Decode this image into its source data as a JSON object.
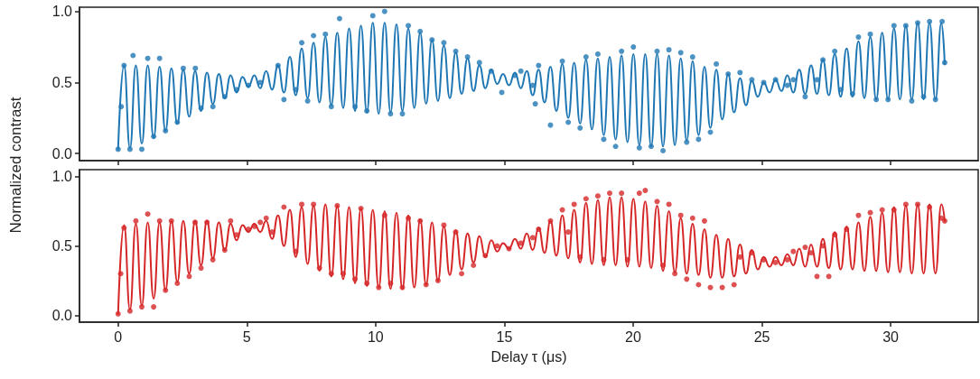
{
  "chart_data": [
    {
      "type": "line",
      "ylabel": "Normalized contrast",
      "xlim": [
        -1.5,
        33.4
      ],
      "ylim": [
        -0.05,
        1.03
      ],
      "xticks": [
        0,
        5,
        10,
        15,
        20,
        25,
        30
      ],
      "yticks": [
        {
          "value": 0,
          "label": "0.0"
        },
        {
          "value": 0.5,
          "label": "0.5"
        },
        {
          "value": 1,
          "label": "1.0"
        }
      ],
      "tick_labels": "y",
      "grid": false,
      "x": [
        0,
        0.23,
        0.46,
        0.69,
        0.92,
        1.15,
        1.38,
        1.61,
        1.84,
        2.07,
        2.3,
        2.53,
        2.76,
        2.99,
        3.22,
        3.45,
        3.68,
        3.91,
        4.14,
        4.37,
        4.6,
        4.83,
        5.06,
        5.29,
        5.52,
        5.75,
        5.98,
        6.21,
        6.44,
        6.67,
        6.9,
        7.13,
        7.36,
        7.59,
        7.82,
        8.05,
        8.28,
        8.51,
        8.74,
        8.97,
        9.2,
        9.43,
        9.66,
        9.89,
        10.12,
        10.35,
        10.58,
        10.81,
        11.04,
        11.27,
        11.5,
        11.73,
        11.96,
        12.19,
        12.42,
        12.65,
        12.88,
        13.11,
        13.34,
        13.57,
        13.8,
        14.03,
        14.26,
        14.49,
        14.72,
        14.95,
        15.18,
        15.41,
        15.64,
        15.87,
        16.1,
        16.33,
        16.56,
        16.79,
        17.02,
        17.25,
        17.48,
        17.71,
        17.94,
        18.17,
        18.4,
        18.63,
        18.86,
        19.09,
        19.32,
        19.55,
        19.78,
        20.01,
        20.24,
        20.47,
        20.7,
        20.93,
        21.16,
        21.39,
        21.62,
        21.85,
        22.08,
        22.31,
        22.54,
        22.77,
        23,
        23.23,
        23.46,
        23.69,
        23.92,
        24.15,
        24.38,
        24.61,
        24.84,
        25.07,
        25.3,
        25.53,
        25.76,
        25.99,
        26.22,
        26.45,
        26.68,
        26.91,
        27.14,
        27.37,
        27.6,
        27.83,
        28.06,
        28.29,
        28.52,
        28.75,
        28.98,
        29.21,
        29.44,
        29.67,
        29.9,
        30.13,
        30.36,
        30.59,
        30.82,
        31.05,
        31.28,
        31.51,
        31.74,
        31.97,
        32.1
      ],
      "series": [
        {
          "color": "#1f77b4",
          "marker": "none",
          "line_style": "solid",
          "values": [
            0.03,
            0.62,
            0.04,
            0.62,
            0.07,
            0.62,
            0.11,
            0.61,
            0.16,
            0.6,
            0.21,
            0.59,
            0.26,
            0.58,
            0.3,
            0.57,
            0.35,
            0.56,
            0.39,
            0.55,
            0.43,
            0.54,
            0.47,
            0.55,
            0.46,
            0.58,
            0.45,
            0.62,
            0.43,
            0.68,
            0.41,
            0.74,
            0.39,
            0.78,
            0.36,
            0.82,
            0.34,
            0.85,
            0.32,
            0.88,
            0.3,
            0.9,
            0.29,
            0.92,
            0.28,
            0.92,
            0.29,
            0.91,
            0.3,
            0.88,
            0.32,
            0.85,
            0.35,
            0.8,
            0.37,
            0.76,
            0.39,
            0.71,
            0.42,
            0.67,
            0.44,
            0.62,
            0.46,
            0.59,
            0.49,
            0.56,
            0.48,
            0.57,
            0.46,
            0.58,
            0.41,
            0.59,
            0.36,
            0.61,
            0.3,
            0.63,
            0.25,
            0.64,
            0.21,
            0.66,
            0.17,
            0.67,
            0.13,
            0.68,
            0.1,
            0.69,
            0.08,
            0.7,
            0.06,
            0.7,
            0.05,
            0.7,
            0.05,
            0.69,
            0.06,
            0.67,
            0.09,
            0.65,
            0.13,
            0.61,
            0.18,
            0.59,
            0.24,
            0.56,
            0.29,
            0.53,
            0.34,
            0.51,
            0.4,
            0.5,
            0.43,
            0.52,
            0.44,
            0.55,
            0.43,
            0.59,
            0.42,
            0.62,
            0.42,
            0.66,
            0.41,
            0.7,
            0.4,
            0.74,
            0.4,
            0.79,
            0.39,
            0.82,
            0.38,
            0.85,
            0.38,
            0.88,
            0.38,
            0.9,
            0.38,
            0.92,
            0.38,
            0.92,
            0.38,
            0.92,
            0.63
          ]
        },
        {
          "type": "scatter",
          "color": "#1f77b4",
          "marker": "circle",
          "x": [
            0,
            0.12,
            0.23,
            0.46,
            0.58,
            0.92,
            1.15,
            1.38,
            1.61,
            1.84,
            2.3,
            2.53,
            3,
            3.22,
            3.68,
            4.14,
            4.6,
            5.06,
            5.52,
            6.21,
            6.44,
            6.9,
            7.13,
            7.36,
            7.59,
            8.05,
            8.28,
            8.6,
            9.2,
            9.66,
            9.89,
            10.35,
            10.58,
            11.04,
            11.27,
            11.73,
            12.19,
            12.65,
            13.11,
            13.57,
            14.03,
            14.49,
            14.9,
            15.41,
            15.64,
            16.1,
            16.2,
            16.33,
            16.79,
            17.25,
            17.48,
            17.94,
            18.17,
            18.63,
            18.86,
            19.32,
            19.55,
            20.01,
            20.24,
            20.7,
            20.93,
            21.16,
            21.39,
            21.85,
            22.08,
            22.31,
            22.54,
            23,
            23.23,
            23.69,
            24.15,
            24.61,
            25.07,
            25.53,
            25.99,
            26.22,
            26.68,
            27.14,
            27.37,
            27.83,
            28.06,
            28.52,
            28.75,
            29.21,
            29.44,
            29.9,
            30.13,
            30.59,
            30.82,
            31.05,
            31.28,
            31.51,
            31.74,
            32,
            32.1
          ],
          "values": [
            0.03,
            0.33,
            0.62,
            0.03,
            0.69,
            0.03,
            0.67,
            0.12,
            0.67,
            0.16,
            0.22,
            0.6,
            0.6,
            0.32,
            0.33,
            0.4,
            0.45,
            0.48,
            0.5,
            0.62,
            0.38,
            0.45,
            0.78,
            0.37,
            0.83,
            0.84,
            0.33,
            0.95,
            0.33,
            0.3,
            0.97,
            1.0,
            0.28,
            0.28,
            0.9,
            0.86,
            0.8,
            0.78,
            0.72,
            0.68,
            0.64,
            0.58,
            0.43,
            0.55,
            0.58,
            0.48,
            0.35,
            0.62,
            0.2,
            0.65,
            0.22,
            0.18,
            0.68,
            0.7,
            0.1,
            0.05,
            0.72,
            0.75,
            0.04,
            0.05,
            0.72,
            0.02,
            0.73,
            0.71,
            0.08,
            0.68,
            0.1,
            0.15,
            0.63,
            0.56,
            0.57,
            0.52,
            0.5,
            0.52,
            0.48,
            0.52,
            0.4,
            0.52,
            0.66,
            0.72,
            0.45,
            0.42,
            0.82,
            0.84,
            0.38,
            0.38,
            0.9,
            0.9,
            0.37,
            0.92,
            0.4,
            0.93,
            0.38,
            0.93,
            0.64
          ]
        }
      ]
    },
    {
      "type": "line",
      "xlabel": "Delay τ (μs)",
      "xlim": [
        -1.5,
        33.4
      ],
      "ylim": [
        -0.05,
        1.05
      ],
      "xticks": [
        0,
        5,
        10,
        15,
        20,
        25,
        30
      ],
      "yticks": [
        {
          "value": 0,
          "label": "0.0"
        },
        {
          "value": 0.5,
          "label": "0.5"
        },
        {
          "value": 1,
          "label": "1.0"
        }
      ],
      "grid": false,
      "x": [
        0,
        0.23,
        0.46,
        0.69,
        0.92,
        1.15,
        1.38,
        1.61,
        1.84,
        2.07,
        2.3,
        2.53,
        2.76,
        2.99,
        3.22,
        3.45,
        3.68,
        3.91,
        4.14,
        4.37,
        4.6,
        4.83,
        5.06,
        5.29,
        5.52,
        5.75,
        5.98,
        6.21,
        6.44,
        6.67,
        6.9,
        7.13,
        7.36,
        7.59,
        7.82,
        8.05,
        8.28,
        8.51,
        8.74,
        8.97,
        9.2,
        9.43,
        9.66,
        9.89,
        10.12,
        10.35,
        10.58,
        10.81,
        11.04,
        11.27,
        11.5,
        11.73,
        11.96,
        12.19,
        12.42,
        12.65,
        12.88,
        13.11,
        13.34,
        13.57,
        13.8,
        14.03,
        14.26,
        14.49,
        14.72,
        14.95,
        15.18,
        15.41,
        15.64,
        15.87,
        16.1,
        16.33,
        16.56,
        16.79,
        17.02,
        17.25,
        17.48,
        17.71,
        17.94,
        18.17,
        18.4,
        18.63,
        18.86,
        19.09,
        19.32,
        19.55,
        19.78,
        20.01,
        20.24,
        20.47,
        20.7,
        20.93,
        21.16,
        21.39,
        21.62,
        21.85,
        22.08,
        22.31,
        22.54,
        22.77,
        23,
        23.23,
        23.46,
        23.69,
        23.92,
        24.15,
        24.38,
        24.61,
        24.84,
        25.07,
        25.3,
        25.53,
        25.76,
        25.99,
        26.22,
        26.45,
        26.68,
        26.91,
        27.14,
        27.37,
        27.6,
        27.83,
        28.06,
        28.29,
        28.52,
        28.75,
        28.98,
        29.21,
        29.44,
        29.67,
        29.9,
        30.13,
        30.36,
        30.59,
        30.82,
        31.05,
        31.28,
        31.51,
        31.74,
        31.97,
        32.1
      ],
      "series": [
        {
          "color": "#d62728",
          "marker": "none",
          "line_style": "solid",
          "values": [
            0.01,
            0.65,
            0.04,
            0.66,
            0.07,
            0.67,
            0.12,
            0.67,
            0.18,
            0.68,
            0.24,
            0.68,
            0.3,
            0.68,
            0.36,
            0.68,
            0.41,
            0.67,
            0.47,
            0.66,
            0.54,
            0.65,
            0.6,
            0.66,
            0.6,
            0.68,
            0.55,
            0.72,
            0.5,
            0.76,
            0.42,
            0.78,
            0.37,
            0.79,
            0.32,
            0.8,
            0.28,
            0.79,
            0.26,
            0.78,
            0.23,
            0.77,
            0.21,
            0.76,
            0.2,
            0.75,
            0.19,
            0.74,
            0.19,
            0.72,
            0.2,
            0.69,
            0.22,
            0.67,
            0.25,
            0.64,
            0.29,
            0.61,
            0.33,
            0.59,
            0.38,
            0.57,
            0.42,
            0.54,
            0.46,
            0.52,
            0.48,
            0.55,
            0.48,
            0.59,
            0.47,
            0.63,
            0.45,
            0.68,
            0.43,
            0.72,
            0.41,
            0.76,
            0.38,
            0.81,
            0.37,
            0.83,
            0.36,
            0.85,
            0.36,
            0.85,
            0.35,
            0.84,
            0.35,
            0.82,
            0.34,
            0.79,
            0.32,
            0.75,
            0.31,
            0.7,
            0.3,
            0.66,
            0.29,
            0.62,
            0.27,
            0.58,
            0.27,
            0.55,
            0.28,
            0.51,
            0.3,
            0.47,
            0.33,
            0.42,
            0.35,
            0.42,
            0.36,
            0.44,
            0.36,
            0.48,
            0.35,
            0.51,
            0.35,
            0.55,
            0.34,
            0.6,
            0.33,
            0.64,
            0.33,
            0.67,
            0.32,
            0.71,
            0.32,
            0.74,
            0.31,
            0.78,
            0.31,
            0.79,
            0.3,
            0.8,
            0.3,
            0.8,
            0.3,
            0.8,
            0.68
          ]
        },
        {
          "type": "scatter",
          "color": "#d62728",
          "marker": "circle",
          "x": [
            0,
            0.1,
            0.23,
            0.46,
            0.69,
            0.92,
            1.15,
            1.38,
            1.61,
            1.84,
            2.07,
            2.3,
            2.76,
            2.99,
            3.22,
            3.45,
            3.68,
            4.14,
            4.37,
            4.6,
            5.06,
            5.3,
            5.52,
            5.75,
            5.98,
            6.44,
            6.9,
            7.13,
            7.59,
            7.82,
            8.28,
            8.51,
            8.74,
            9.2,
            9.43,
            9.66,
            10.12,
            10.35,
            10.58,
            11.04,
            11.27,
            11.73,
            11.96,
            12.42,
            12.65,
            13.11,
            13.34,
            13.8,
            14.26,
            14.72,
            15.18,
            15.64,
            16.1,
            16.33,
            16.79,
            17.25,
            17.48,
            17.71,
            17.94,
            18.17,
            18.63,
            18.86,
            19.09,
            19.55,
            19.78,
            20.24,
            20.47,
            20.93,
            21.16,
            21.39,
            21.62,
            21.85,
            22.08,
            22.31,
            22.54,
            22.77,
            23,
            23.46,
            23.92,
            24.15,
            24.61,
            25.07,
            25.53,
            25.99,
            26.22,
            26.68,
            26.91,
            27.14,
            27.37,
            27.6,
            27.83,
            28.29,
            28.75,
            29.21,
            29.67,
            30.13,
            30.59,
            31.05,
            31.51,
            31.97,
            32.1
          ],
          "values": [
            0.01,
            0.3,
            0.63,
            0.03,
            0.68,
            0.06,
            0.73,
            0.06,
            0.68,
            0.18,
            0.68,
            0.23,
            0.28,
            0.67,
            0.34,
            0.67,
            0.4,
            0.47,
            0.68,
            0.58,
            0.62,
            0.64,
            0.67,
            0.7,
            0.6,
            0.78,
            0.46,
            0.8,
            0.8,
            0.34,
            0.3,
            0.79,
            0.3,
            0.26,
            0.77,
            0.23,
            0.2,
            0.72,
            0.23,
            0.2,
            0.7,
            0.68,
            0.22,
            0.25,
            0.65,
            0.6,
            0.3,
            0.36,
            0.43,
            0.5,
            0.48,
            0.52,
            0.56,
            0.62,
            0.68,
            0.76,
            0.6,
            0.8,
            0.42,
            0.84,
            0.86,
            0.4,
            0.88,
            0.88,
            0.4,
            0.88,
            0.9,
            0.82,
            0.36,
            0.8,
            0.3,
            0.72,
            0.26,
            0.7,
            0.22,
            0.68,
            0.2,
            0.2,
            0.22,
            0.42,
            0.45,
            0.4,
            0.38,
            0.4,
            0.46,
            0.49,
            0.45,
            0.28,
            0.5,
            0.28,
            0.58,
            0.62,
            0.72,
            0.74,
            0.76,
            0.76,
            0.8,
            0.8,
            0.78,
            0.7,
            0.68
          ]
        }
      ]
    }
  ]
}
